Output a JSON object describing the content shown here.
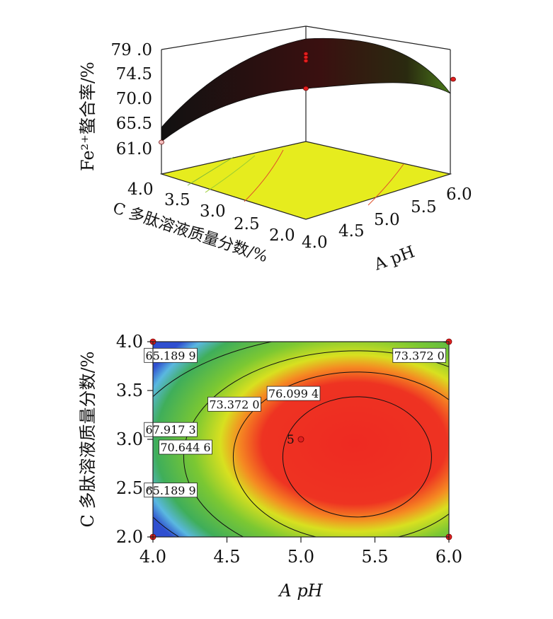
{
  "chart_data": [
    {
      "type": "surface",
      "zlabel": "Fe²⁺螯合率/%",
      "xlabel": "A pH",
      "ylabel": "C 多肽溶液质量分数/%",
      "x_ticks": [
        "4.0",
        "4.5",
        "5.0",
        "5.5",
        "6.0"
      ],
      "y_ticks": [
        "4.0",
        "3.5",
        "3.0",
        "2.5",
        "2.0"
      ],
      "z_ticks": [
        "79 .0",
        "74.5",
        "70.0",
        "65.5",
        "61.0"
      ],
      "x_range": [
        4.0,
        6.0
      ],
      "y_range": [
        2.0,
        4.0
      ],
      "z_range": [
        61.0,
        79.0
      ],
      "design_points": [
        {
          "x": 5.0,
          "y": 3.0,
          "z": 77.0
        },
        {
          "x": 5.0,
          "y": 3.0,
          "z": 77.5
        },
        {
          "x": 5.0,
          "y": 3.0,
          "z": 78.0
        },
        {
          "x": 5.0,
          "y": 3.0,
          "z": 72.5
        },
        {
          "x": 6.0,
          "y": 2.0,
          "z": 73.0
        },
        {
          "x": 4.0,
          "y": 4.0,
          "z": 61.0
        }
      ],
      "colors": {
        "surface": "#2a0d0d",
        "floor": "#e6ec1e"
      }
    },
    {
      "type": "contour",
      "xlabel": "A pH",
      "ylabel": "C 多肽溶液质量分数/%",
      "x_ticks": [
        "4.0",
        "4.5",
        "5.0",
        "5.5",
        "6.0"
      ],
      "y_ticks": [
        "2.0",
        "2.5",
        "3.0",
        "3.5",
        "4.0"
      ],
      "x_range": [
        4.0,
        6.0
      ],
      "y_range": [
        2.0,
        4.0
      ],
      "contour_levels": [
        65.1899,
        67.9173,
        70.6446,
        73.372,
        76.0994
      ],
      "contour_labels": [
        {
          "text": "65.189 9",
          "x": 4.12,
          "y": 3.86
        },
        {
          "text": "65.189 9",
          "x": 4.12,
          "y": 2.48
        },
        {
          "text": "67.917 3",
          "x": 4.12,
          "y": 3.1
        },
        {
          "text": "70.644 6",
          "x": 4.22,
          "y": 2.92
        },
        {
          "text": "73.372 0",
          "x": 4.55,
          "y": 3.36
        },
        {
          "text": "73.372 0",
          "x": 5.8,
          "y": 3.86
        },
        {
          "text": "76.099 4",
          "x": 4.95,
          "y": 3.47
        }
      ],
      "center_point": {
        "x": 5.0,
        "y": 3.0,
        "label": "5"
      },
      "design_points": [
        {
          "x": 4.0,
          "y": 4.0
        },
        {
          "x": 6.0,
          "y": 4.0
        },
        {
          "x": 4.0,
          "y": 2.0
        },
        {
          "x": 6.0,
          "y": 2.0
        },
        {
          "x": 5.0,
          "y": 3.0
        }
      ],
      "colors": {
        "low": "#2f4fd0",
        "mid": "#4fbf2f",
        "high": "#ee2a22",
        "point": "#e02020"
      }
    }
  ]
}
